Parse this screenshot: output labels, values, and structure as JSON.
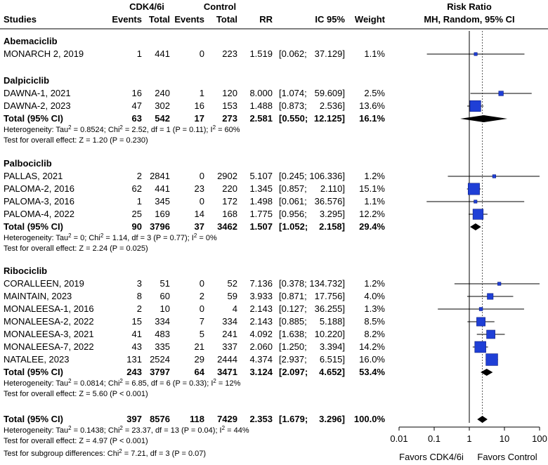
{
  "chart_data": {
    "type": "forest",
    "title": "Risk Ratio",
    "subtitle": "MH, Random, 95% CI",
    "columns": {
      "studies": "Studies",
      "group_cdk": "CDK4/6i",
      "group_control": "Control",
      "events": "Events",
      "total": "Total",
      "rr": "RR",
      "ci": "IC 95%",
      "weight": "Weight"
    },
    "x_axis": {
      "scale": "log",
      "range": [
        0.01,
        100
      ],
      "ticks": [
        {
          "value": 0.01,
          "label": "0.01"
        },
        {
          "value": 0.1,
          "label": "0.1"
        },
        {
          "value": 1,
          "label": "1"
        },
        {
          "value": 10,
          "label": "10"
        },
        {
          "value": 100,
          "label": "100"
        }
      ],
      "label_left": "Favors CDK4/6i",
      "label_right": "Favors Control",
      "reference_line": 1,
      "overall_line": 2.353
    },
    "subgroups": [
      {
        "name": "Abemaciclib",
        "studies": [
          {
            "study": "MONARCH 2, 2019",
            "e1": "1",
            "n1": "441",
            "e2": "0",
            "n2": "223",
            "rr_text": "1.519",
            "ci_lo_text": "[0.062;",
            "ci_hi_text": "37.129]",
            "weight_text": "1.1%",
            "rr": 1.519,
            "lo": 0.062,
            "hi": 37.129,
            "w": 1.1
          }
        ]
      },
      {
        "name": "Dalpiciclib",
        "studies": [
          {
            "study": "DAWNA-1, 2021",
            "e1": "16",
            "n1": "240",
            "e2": "1",
            "n2": "120",
            "rr_text": "8.000",
            "ci_lo_text": "[1.074;",
            "ci_hi_text": "59.609]",
            "weight_text": "2.5%",
            "rr": 8.0,
            "lo": 1.074,
            "hi": 59.609,
            "w": 2.5
          },
          {
            "study": "DAWNA-2, 2023",
            "e1": "47",
            "n1": "302",
            "e2": "16",
            "n2": "153",
            "rr_text": "1.488",
            "ci_lo_text": "[0.873;",
            "ci_hi_text": "2.536]",
            "weight_text": "13.6%",
            "rr": 1.488,
            "lo": 0.873,
            "hi": 2.536,
            "w": 13.6
          }
        ],
        "total": {
          "label": "Total (95% CI)",
          "e1": "63",
          "n1": "542",
          "e2": "17",
          "n2": "273",
          "rr_text": "2.581",
          "ci_lo_text": "[0.550;",
          "ci_hi_text": "12.125]",
          "weight_text": "16.1%",
          "rr": 2.581,
          "lo": 0.55,
          "hi": 12.125
        },
        "heterogeneity": [
          "Heterogeneity: Tau",
          "2",
          " = 0.8524; Chi",
          "2",
          " = 2.52, df = 1 (P = 0.11); I",
          "2",
          " = 60%"
        ],
        "overall_effect": "Test for overall effect: Z = 1.20 (P = 0.230)"
      },
      {
        "name": "Palbociclib",
        "studies": [
          {
            "study": "PALLAS, 2021",
            "e1": "2",
            "n1": "2841",
            "e2": "0",
            "n2": "2902",
            "rr_text": "5.107",
            "ci_lo_text": "[0.245;",
            "ci_hi_text": "106.336]",
            "weight_text": "1.2%",
            "rr": 5.107,
            "lo": 0.245,
            "hi": 106.336,
            "w": 1.2
          },
          {
            "study": "PALOMA-2, 2016",
            "e1": "62",
            "n1": "441",
            "e2": "23",
            "n2": "220",
            "rr_text": "1.345",
            "ci_lo_text": "[0.857;",
            "ci_hi_text": "2.110]",
            "weight_text": "15.1%",
            "rr": 1.345,
            "lo": 0.857,
            "hi": 2.11,
            "w": 15.1
          },
          {
            "study": "PALOMA-3, 2016",
            "e1": "1",
            "n1": "345",
            "e2": "0",
            "n2": "172",
            "rr_text": "1.498",
            "ci_lo_text": "[0.061;",
            "ci_hi_text": "36.576]",
            "weight_text": "1.1%",
            "rr": 1.498,
            "lo": 0.061,
            "hi": 36.576,
            "w": 1.1
          },
          {
            "study": "PALOMA-4, 2022",
            "e1": "25",
            "n1": "169",
            "e2": "14",
            "n2": "168",
            "rr_text": "1.775",
            "ci_lo_text": "[0.956;",
            "ci_hi_text": "3.295]",
            "weight_text": "12.2%",
            "rr": 1.775,
            "lo": 0.956,
            "hi": 3.295,
            "w": 12.2
          }
        ],
        "total": {
          "label": "Total (95% CI)",
          "e1": "90",
          "n1": "3796",
          "e2": "37",
          "n2": "3462",
          "rr_text": "1.507",
          "ci_lo_text": "[1.052;",
          "ci_hi_text": "2.158]",
          "weight_text": "29.4%",
          "rr": 1.507,
          "lo": 1.052,
          "hi": 2.158
        },
        "heterogeneity": [
          "Heterogeneity: Tau",
          "2",
          " = 0; Chi",
          "2",
          " = 1.14, df = 3 (P = 0.77); I",
          "2",
          " = 0%"
        ],
        "overall_effect": "Test for overall effect: Z = 2.24 (P = 0.025)"
      },
      {
        "name": "Ribociclib",
        "studies": [
          {
            "study": "CORALLEEN, 2019",
            "e1": "3",
            "n1": "51",
            "e2": "0",
            "n2": "52",
            "rr_text": "7.136",
            "ci_lo_text": "[0.378;",
            "ci_hi_text": "134.732]",
            "weight_text": "1.2%",
            "rr": 7.136,
            "lo": 0.378,
            "hi": 134.732,
            "w": 1.2
          },
          {
            "study": "MAINTAIN, 2023",
            "e1": "8",
            "n1": "60",
            "e2": "2",
            "n2": "59",
            "rr_text": "3.933",
            "ci_lo_text": "[0.871;",
            "ci_hi_text": "17.756]",
            "weight_text": "4.0%",
            "rr": 3.933,
            "lo": 0.871,
            "hi": 17.756,
            "w": 4.0
          },
          {
            "study": "MONALEESA-1, 2016",
            "e1": "2",
            "n1": "10",
            "e2": "0",
            "n2": "4",
            "rr_text": "2.143",
            "ci_lo_text": "[0.127;",
            "ci_hi_text": "36.255]",
            "weight_text": "1.3%",
            "rr": 2.143,
            "lo": 0.127,
            "hi": 36.255,
            "w": 1.3
          },
          {
            "study": "MONALEESA-2, 2022",
            "e1": "15",
            "n1": "334",
            "e2": "7",
            "n2": "334",
            "rr_text": "2.143",
            "ci_lo_text": "[0.885;",
            "ci_hi_text": "5.188]",
            "weight_text": "8.5%",
            "rr": 2.143,
            "lo": 0.885,
            "hi": 5.188,
            "w": 8.5
          },
          {
            "study": "MONALEESA-3, 2021",
            "e1": "41",
            "n1": "483",
            "e2": "5",
            "n2": "241",
            "rr_text": "4.092",
            "ci_lo_text": "[1.638;",
            "ci_hi_text": "10.220]",
            "weight_text": "8.2%",
            "rr": 4.092,
            "lo": 1.638,
            "hi": 10.22,
            "w": 8.2
          },
          {
            "study": "MONALEESA-7, 2022",
            "e1": "43",
            "n1": "335",
            "e2": "21",
            "n2": "337",
            "rr_text": "2.060",
            "ci_lo_text": "[1.250;",
            "ci_hi_text": "3.394]",
            "weight_text": "14.2%",
            "rr": 2.06,
            "lo": 1.25,
            "hi": 3.394,
            "w": 14.2
          },
          {
            "study": "NATALEE, 2023",
            "e1": "131",
            "n1": "2524",
            "e2": "29",
            "n2": "2444",
            "rr_text": "4.374",
            "ci_lo_text": "[2.937;",
            "ci_hi_text": "6.515]",
            "weight_text": "16.0%",
            "rr": 4.374,
            "lo": 2.937,
            "hi": 6.515,
            "w": 16.0
          }
        ],
        "total": {
          "label": "Total (95% CI)",
          "e1": "243",
          "n1": "3797",
          "e2": "64",
          "n2": "3471",
          "rr_text": "3.124",
          "ci_lo_text": "[2.097;",
          "ci_hi_text": "4.652]",
          "weight_text": "53.4%",
          "rr": 3.124,
          "lo": 2.097,
          "hi": 4.652
        },
        "heterogeneity": [
          "Heterogeneity: Tau",
          "2",
          " = 0.0814; Chi",
          "2",
          " = 6.85, df = 6 (P = 0.33); I",
          "2",
          " = 12%"
        ],
        "overall_effect": "Test for overall effect: Z = 5.60 (P < 0.001)"
      }
    ],
    "overall": {
      "label": "Total (95% CI)",
      "e1": "397",
      "n1": "8576",
      "e2": "118",
      "n2": "7429",
      "rr_text": "2.353",
      "ci_lo_text": "[1.679;",
      "ci_hi_text": "3.296]",
      "weight_text": "100.0%",
      "rr": 2.353,
      "lo": 1.679,
      "hi": 3.296,
      "heterogeneity": [
        "Heterogeneity: Tau",
        "2",
        " = 0.1438; Chi",
        "2",
        " = 23.37, df = 13 (P = 0.04); I",
        "2",
        " = 44%"
      ],
      "overall_effect": "Test for overall effect: Z = 4.97 (P < 0.001)",
      "subgroup_differences": [
        "Test for subgroup differences: Chi",
        "2",
        " = 7.21, df = 3 (P = 0.07)"
      ]
    },
    "colors": {
      "square": "#1f3fd6",
      "square_border": "#0a1a80",
      "diamond": "#000000",
      "ref_line": "#000000",
      "overall_line": "#555555"
    }
  }
}
